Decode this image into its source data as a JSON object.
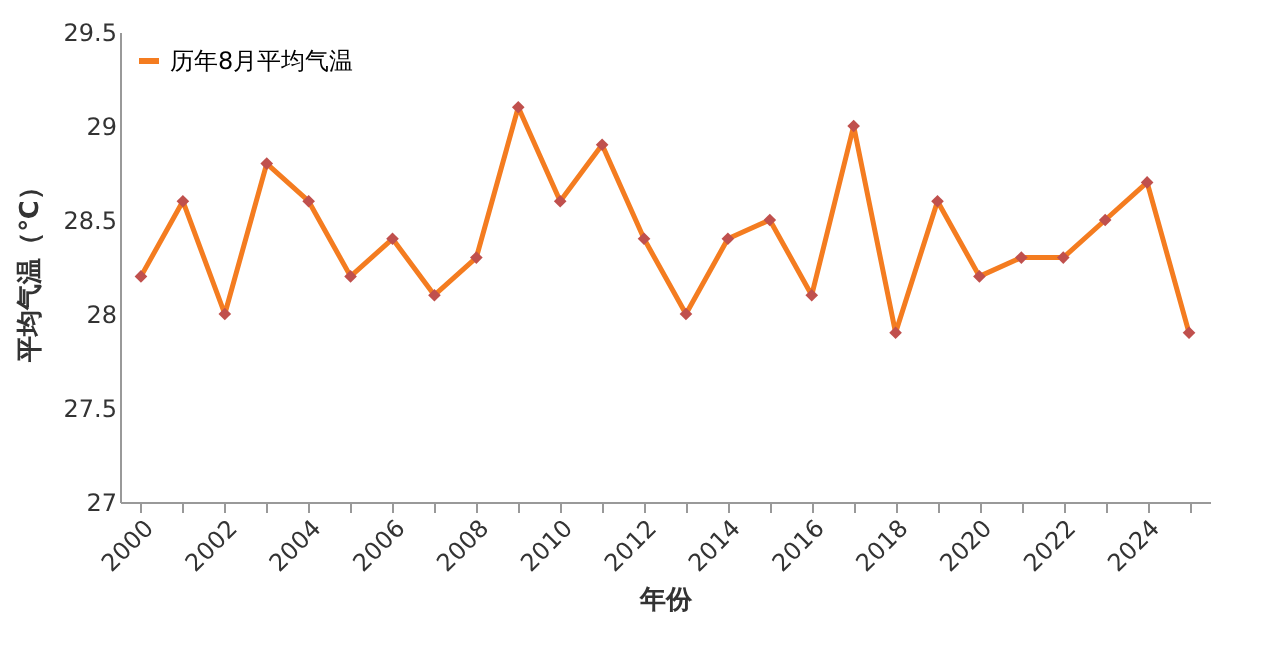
{
  "chart_data": {
    "type": "line",
    "xlabel": "年份",
    "ylabel": "平均气温（℃）",
    "categories": [
      "2000",
      null,
      "2002",
      null,
      "2004",
      null,
      "2006",
      null,
      "2008",
      null,
      "2010",
      null,
      "2012",
      null,
      "2014",
      null,
      "2016",
      null,
      "2018",
      null,
      "2020",
      null,
      "2022",
      null,
      "2024",
      null
    ],
    "series": [
      {
        "name": "历年8月平均气温",
        "color": "#f47c20",
        "values": [
          28.2,
          28.6,
          28.0,
          28.8,
          28.6,
          28.2,
          28.4,
          28.1,
          28.3,
          29.1,
          28.6,
          28.9,
          28.4,
          28.0,
          28.4,
          28.5,
          28.1,
          29.0,
          27.9,
          28.6,
          28.2,
          28.3,
          28.3,
          28.5,
          28.7,
          27.9
        ]
      }
    ],
    "ylim": [
      27,
      29.5
    ],
    "yticks": [
      27,
      27.5,
      28,
      28.5,
      29,
      29.5
    ],
    "grid": false,
    "legend": "top left",
    "marker": "diamond",
    "line_style": "solid"
  }
}
